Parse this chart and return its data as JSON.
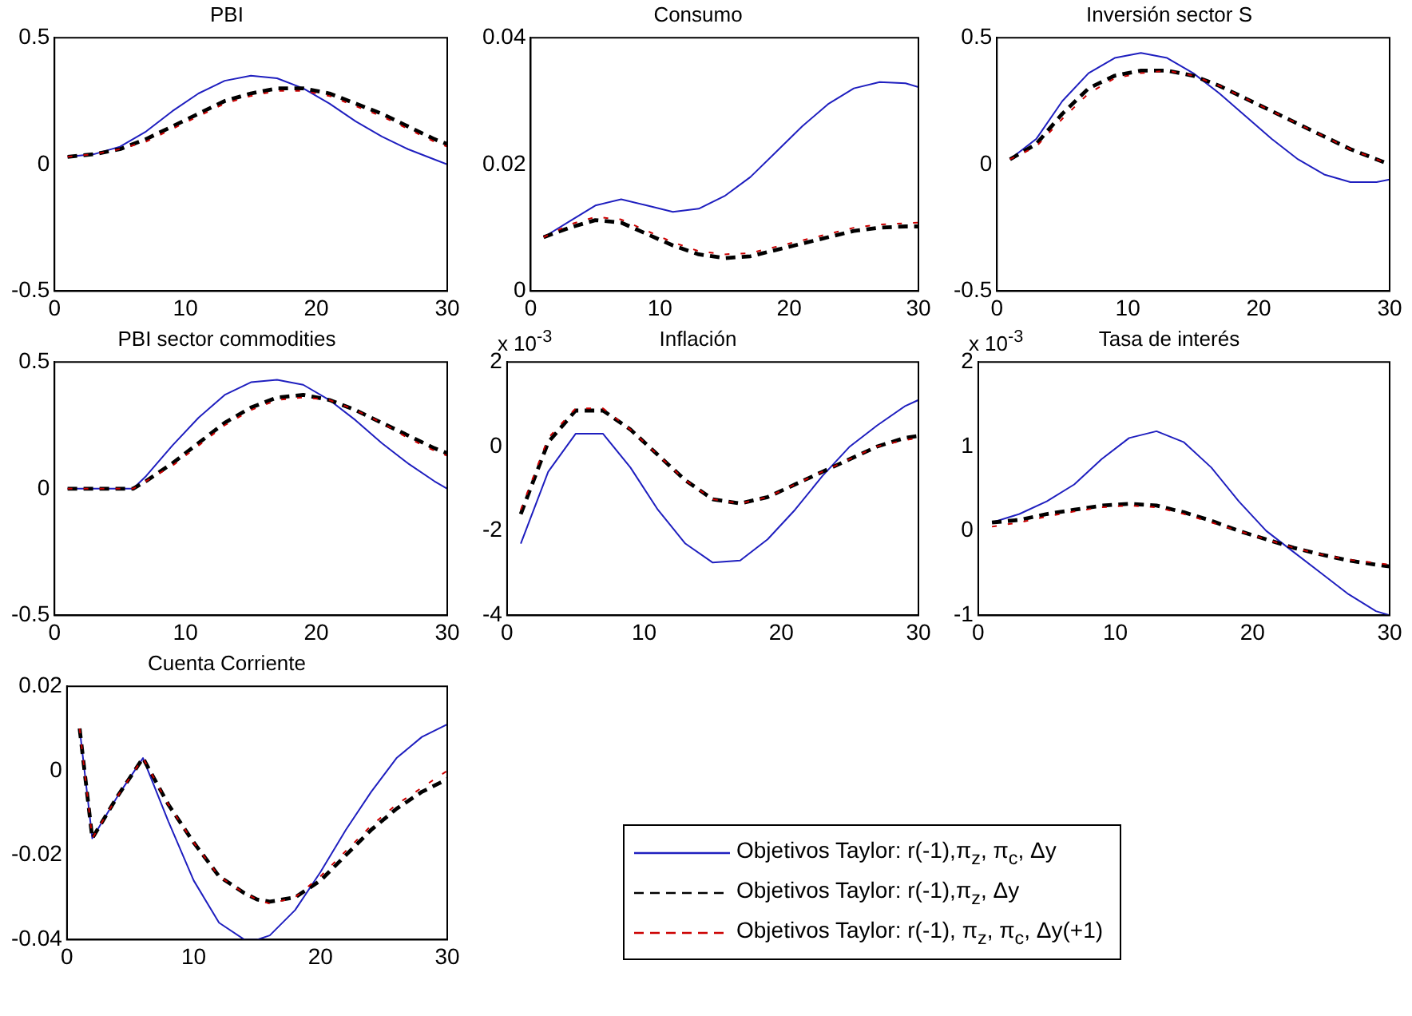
{
  "chart_data": [
    {
      "type": "line",
      "title": "PBI",
      "x": [
        1,
        3,
        5,
        7,
        9,
        11,
        13,
        15,
        17,
        19,
        21,
        23,
        25,
        27,
        29,
        30
      ],
      "xlim": [
        0,
        30
      ],
      "xticks": [
        0,
        10,
        20,
        30
      ],
      "ylim": [
        -0.5,
        0.5
      ],
      "yticks": [
        -0.5,
        0,
        0.5
      ],
      "grid": false,
      "legend": false,
      "series": [
        {
          "color": "#1f1fbf",
          "line_style": "solid",
          "values": [
            0.03,
            0.04,
            0.07,
            0.13,
            0.21,
            0.28,
            0.33,
            0.35,
            0.34,
            0.3,
            0.24,
            0.17,
            0.11,
            0.06,
            0.02,
            0.0
          ]
        },
        {
          "color": "#000000",
          "line_style": "dashed",
          "values": [
            0.03,
            0.04,
            0.06,
            0.1,
            0.15,
            0.2,
            0.25,
            0.28,
            0.3,
            0.3,
            0.28,
            0.24,
            0.2,
            0.15,
            0.1,
            0.08
          ]
        },
        {
          "color": "#cc0000",
          "line_style": "dashed",
          "values": [
            0.03,
            0.04,
            0.06,
            0.09,
            0.14,
            0.19,
            0.24,
            0.27,
            0.29,
            0.29,
            0.27,
            0.23,
            0.19,
            0.14,
            0.09,
            0.07
          ]
        }
      ]
    },
    {
      "type": "line",
      "title": "Consumo",
      "x": [
        1,
        3,
        5,
        7,
        9,
        11,
        13,
        15,
        17,
        19,
        21,
        23,
        25,
        27,
        29,
        30
      ],
      "xlim": [
        0,
        30
      ],
      "xticks": [
        0,
        10,
        20,
        30
      ],
      "ylim": [
        0,
        0.04
      ],
      "yticks": [
        0,
        0.02,
        0.04
      ],
      "grid": false,
      "legend": false,
      "series": [
        {
          "color": "#1f1fbf",
          "line_style": "solid",
          "values": [
            0.0085,
            0.011,
            0.0135,
            0.0145,
            0.0135,
            0.0125,
            0.013,
            0.015,
            0.018,
            0.022,
            0.026,
            0.0295,
            0.032,
            0.033,
            0.0328,
            0.0322
          ]
        },
        {
          "color": "#000000",
          "line_style": "dashed",
          "values": [
            0.0085,
            0.01,
            0.0112,
            0.0108,
            0.009,
            0.0072,
            0.0058,
            0.0052,
            0.0055,
            0.0065,
            0.0075,
            0.0085,
            0.0095,
            0.01,
            0.0102,
            0.0102
          ]
        },
        {
          "color": "#cc0000",
          "line_style": "dashed",
          "values": [
            0.0085,
            0.0105,
            0.0117,
            0.0113,
            0.0095,
            0.0077,
            0.0063,
            0.0058,
            0.006,
            0.007,
            0.008,
            0.009,
            0.01,
            0.0105,
            0.0107,
            0.0108
          ]
        }
      ]
    },
    {
      "type": "line",
      "title": "Inversión sector S",
      "x": [
        1,
        3,
        5,
        7,
        9,
        11,
        13,
        15,
        17,
        19,
        21,
        23,
        25,
        27,
        29,
        30
      ],
      "xlim": [
        0,
        30
      ],
      "xticks": [
        0,
        10,
        20,
        30
      ],
      "ylim": [
        -0.5,
        0.5
      ],
      "yticks": [
        -0.5,
        0,
        0.5
      ],
      "grid": false,
      "legend": false,
      "series": [
        {
          "color": "#1f1fbf",
          "line_style": "solid",
          "values": [
            0.02,
            0.1,
            0.25,
            0.36,
            0.42,
            0.44,
            0.42,
            0.36,
            0.28,
            0.19,
            0.1,
            0.02,
            -0.04,
            -0.07,
            -0.07,
            -0.06
          ]
        },
        {
          "color": "#000000",
          "line_style": "dashed",
          "values": [
            0.02,
            0.08,
            0.2,
            0.3,
            0.35,
            0.37,
            0.37,
            0.35,
            0.31,
            0.26,
            0.21,
            0.16,
            0.11,
            0.06,
            0.02,
            0.0
          ]
        },
        {
          "color": "#cc0000",
          "line_style": "dashed",
          "values": [
            0.02,
            0.07,
            0.18,
            0.28,
            0.34,
            0.36,
            0.37,
            0.35,
            0.31,
            0.26,
            0.21,
            0.16,
            0.11,
            0.06,
            0.02,
            0.0
          ]
        }
      ]
    },
    {
      "type": "line",
      "title": "PBI sector commodities",
      "x": [
        1,
        3,
        5,
        6,
        7,
        9,
        11,
        13,
        15,
        17,
        19,
        21,
        23,
        25,
        27,
        29,
        30
      ],
      "xlim": [
        0,
        30
      ],
      "xticks": [
        0,
        10,
        20,
        30
      ],
      "ylim": [
        -0.5,
        0.5
      ],
      "yticks": [
        -0.5,
        0,
        0.5
      ],
      "grid": false,
      "legend": false,
      "series": [
        {
          "color": "#1f1fbf",
          "line_style": "solid",
          "values": [
            0,
            0,
            0,
            0,
            0.05,
            0.17,
            0.28,
            0.37,
            0.42,
            0.43,
            0.41,
            0.35,
            0.27,
            0.18,
            0.1,
            0.03,
            0.0
          ]
        },
        {
          "color": "#000000",
          "line_style": "dashed",
          "values": [
            0,
            0,
            0,
            0,
            0.03,
            0.1,
            0.18,
            0.26,
            0.32,
            0.36,
            0.37,
            0.35,
            0.31,
            0.26,
            0.21,
            0.16,
            0.14
          ]
        },
        {
          "color": "#cc0000",
          "line_style": "dashed",
          "values": [
            0,
            0,
            0,
            0,
            0.03,
            0.09,
            0.17,
            0.25,
            0.31,
            0.35,
            0.36,
            0.35,
            0.31,
            0.26,
            0.2,
            0.15,
            0.13
          ]
        }
      ]
    },
    {
      "type": "line",
      "title": "Inflación",
      "annotations": [
        "x 10$^{-3}$"
      ],
      "x": [
        1,
        3,
        5,
        7,
        9,
        11,
        13,
        15,
        17,
        19,
        21,
        23,
        25,
        27,
        29,
        30
      ],
      "xlim": [
        0,
        30
      ],
      "xticks": [
        0,
        10,
        20,
        30
      ],
      "ylim": [
        -4,
        2
      ],
      "yticks": [
        -4,
        -2,
        0,
        2
      ],
      "grid": false,
      "legend": false,
      "series": [
        {
          "color": "#1f1fbf",
          "line_style": "solid",
          "values": [
            -2.3,
            -0.6,
            0.3,
            0.3,
            -0.5,
            -1.5,
            -2.3,
            -2.75,
            -2.7,
            -2.2,
            -1.5,
            -0.7,
            0.0,
            0.5,
            0.95,
            1.1
          ]
        },
        {
          "color": "#000000",
          "line_style": "dashed",
          "values": [
            -1.6,
            0.1,
            0.85,
            0.85,
            0.4,
            -0.2,
            -0.8,
            -1.25,
            -1.35,
            -1.2,
            -0.9,
            -0.6,
            -0.3,
            0,
            0.2,
            0.25
          ]
        },
        {
          "color": "#cc0000",
          "line_style": "dashed",
          "values": [
            -1.5,
            0.2,
            0.9,
            0.9,
            0.4,
            -0.2,
            -0.8,
            -1.25,
            -1.35,
            -1.2,
            -0.9,
            -0.6,
            -0.3,
            0,
            0.15,
            0.2
          ]
        }
      ]
    },
    {
      "type": "line",
      "title": "Tasa de interés",
      "annotations": [
        "x 10$^{-3}$"
      ],
      "x": [
        1,
        3,
        5,
        7,
        9,
        11,
        13,
        15,
        17,
        19,
        21,
        23,
        25,
        27,
        29,
        30
      ],
      "xlim": [
        0,
        30
      ],
      "xticks": [
        0,
        10,
        20,
        30
      ],
      "ylim": [
        -1,
        2
      ],
      "yticks": [
        -1,
        0,
        1,
        2
      ],
      "grid": false,
      "legend": false,
      "series": [
        {
          "color": "#1f1fbf",
          "line_style": "solid",
          "values": [
            0.1,
            0.2,
            0.35,
            0.55,
            0.85,
            1.1,
            1.18,
            1.05,
            0.75,
            0.35,
            0.0,
            -0.25,
            -0.5,
            -0.75,
            -0.95,
            -1.0
          ]
        },
        {
          "color": "#000000",
          "line_style": "dashed",
          "values": [
            0.1,
            0.13,
            0.2,
            0.25,
            0.3,
            0.32,
            0.3,
            0.22,
            0.12,
            0.0,
            -0.1,
            -0.2,
            -0.28,
            -0.35,
            -0.4,
            -0.42
          ]
        },
        {
          "color": "#cc0000",
          "line_style": "dashed",
          "values": [
            0.05,
            0.1,
            0.17,
            0.23,
            0.28,
            0.3,
            0.28,
            0.2,
            0.1,
            0.0,
            -0.1,
            -0.2,
            -0.28,
            -0.34,
            -0.38,
            -0.4
          ]
        }
      ]
    },
    {
      "type": "line",
      "title": "Cuenta Corriente",
      "x": [
        1,
        2,
        4,
        6,
        8,
        10,
        12,
        14,
        15,
        16,
        18,
        20,
        22,
        24,
        26,
        28,
        30
      ],
      "xlim": [
        0,
        30
      ],
      "xticks": [
        0,
        10,
        20,
        30
      ],
      "ylim": [
        -0.04,
        0.02
      ],
      "yticks": [
        -0.04,
        -0.02,
        0,
        0.02
      ],
      "grid": false,
      "legend": "right",
      "series": [
        {
          "name": "Objetivos Taylor: r(-1),π$_{z}$, π$_{c}$, Δy",
          "color": "#1f1fbf",
          "line_style": "solid",
          "values": [
            0.01,
            -0.016,
            -0.006,
            0.003,
            -0.012,
            -0.026,
            -0.036,
            -0.04,
            -0.04,
            -0.039,
            -0.033,
            -0.024,
            -0.014,
            -0.005,
            0.003,
            0.008,
            0.011
          ]
        },
        {
          "name": "Objetivos Taylor: r(-1),π$_{z}$, Δy",
          "color": "#000000",
          "line_style": "dashed",
          "values": [
            0.01,
            -0.016,
            -0.006,
            0.003,
            -0.008,
            -0.017,
            -0.025,
            -0.029,
            -0.0305,
            -0.031,
            -0.03,
            -0.026,
            -0.02,
            -0.014,
            -0.009,
            -0.005,
            -0.002
          ]
        },
        {
          "name": "Objetivos Taylor: r(-1), π$_{z}$, π$_{c}$, Δy(+1)",
          "color": "#cc0000",
          "line_style": "dashed",
          "values": [
            0.01,
            -0.016,
            -0.006,
            0.003,
            -0.008,
            -0.017,
            -0.025,
            -0.029,
            -0.0305,
            -0.0315,
            -0.03,
            -0.025,
            -0.019,
            -0.013,
            -0.008,
            -0.004,
            0.0
          ]
        }
      ]
    }
  ]
}
